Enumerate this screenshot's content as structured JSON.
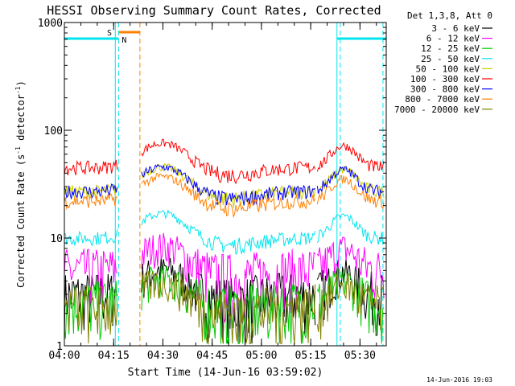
{
  "chart_data": {
    "type": "line",
    "title": "HESSI Observing Summary Count Rates, Corrected",
    "xlabel": "Start Time (14-Jun-16 03:59:02)",
    "ylabel_main": "Corrected Count Rate (s",
    "ylabel_sup1": "-1",
    "ylabel_mid": " detector",
    "ylabel_sup2": "-1",
    "ylabel_end": ")",
    "y_scale": "log",
    "ylim": [
      1,
      1000
    ],
    "y_ticks": [
      1,
      10,
      100,
      1000
    ],
    "y_tick_labels": [
      "1",
      "10",
      "100",
      "1000"
    ],
    "x_range_min": [
      0,
      98
    ],
    "x_ticks_min": [
      0,
      15,
      30,
      45,
      60,
      75,
      90
    ],
    "x_tick_labels": [
      "04:00",
      "04:15",
      "04:30",
      "04:45",
      "05:00",
      "05:15",
      "05:30"
    ],
    "legend_title": "Det 1,3,8, Att 0",
    "legend_position": "top-right",
    "series": [
      {
        "name": "3 - 6 keV",
        "color": "#000000",
        "base": 3
      },
      {
        "name": "6 - 12 keV",
        "color": "#ff00ff",
        "base": 5
      },
      {
        "name": "12 - 25 keV",
        "color": "#00cc00",
        "base": 2.5
      },
      {
        "name": "25 - 50 keV",
        "color": "#00e5ee",
        "base": 10
      },
      {
        "name": "50 - 100 keV",
        "color": "#cccc00",
        "base": 27
      },
      {
        "name": "100 - 300 keV",
        "color": "#ff0000",
        "base": 45
      },
      {
        "name": "300 - 800 keV",
        "color": "#0000ff",
        "base": 27
      },
      {
        "name": "800 - 7000 keV",
        "color": "#ff8000",
        "base": 22
      },
      {
        "name": "7000 - 20000 keV",
        "color": "#808000",
        "base": 2.3
      }
    ],
    "saa_segments": [
      [
        0,
        16.5
      ],
      [
        83,
        98
      ]
    ],
    "night_segments": [
      [
        16.5,
        23
      ]
    ],
    "saa_marker": "S",
    "night_marker": "N",
    "colors": {
      "saa": "#00e5ee",
      "night": "#ff8000"
    }
  },
  "footer_date": "14-Jun-2016 19:03"
}
